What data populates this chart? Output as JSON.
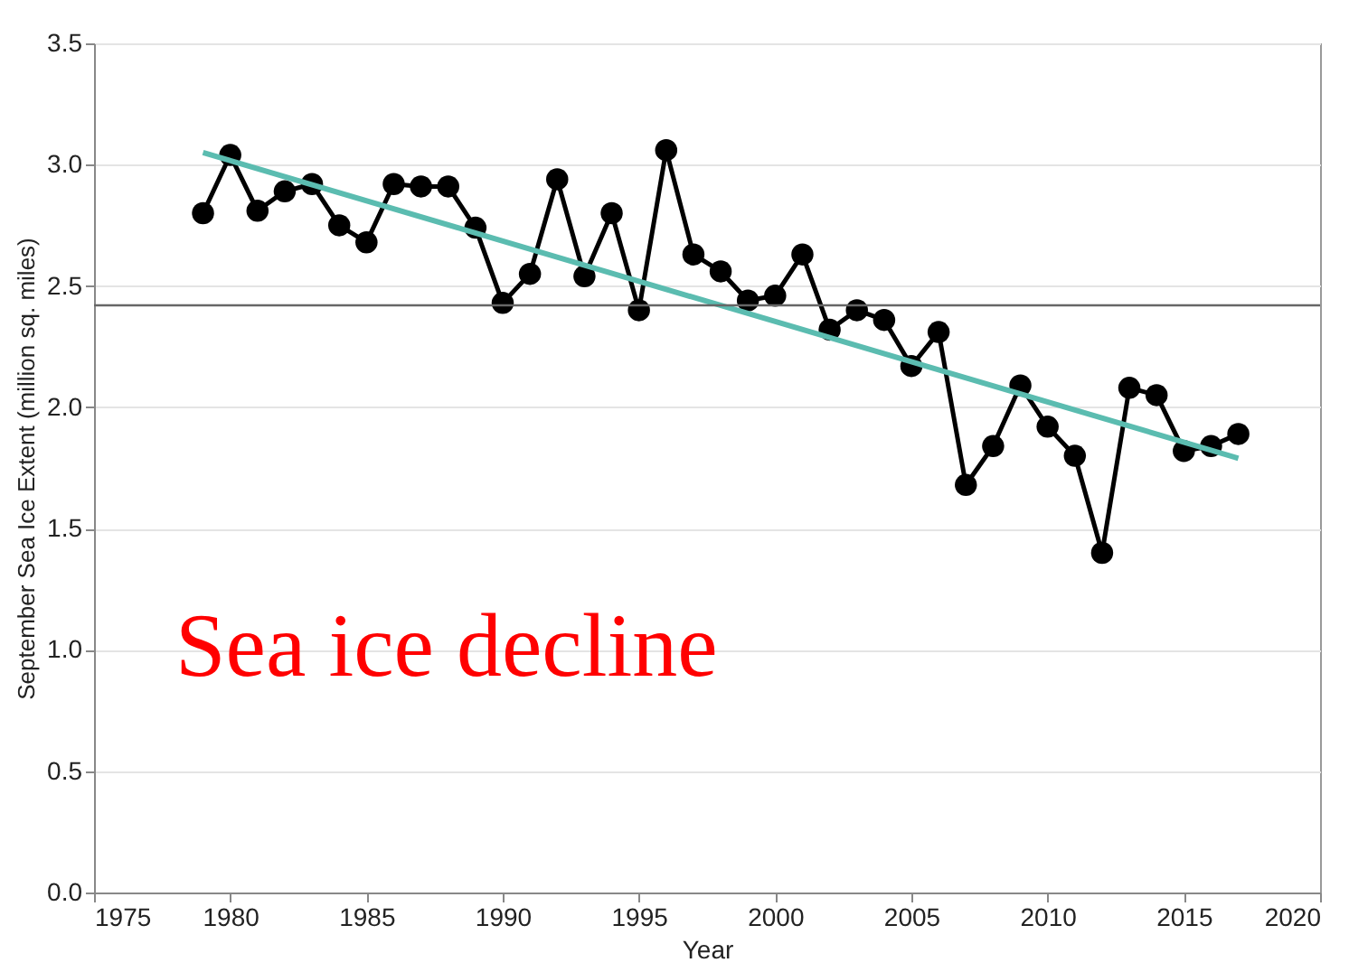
{
  "chart_data": {
    "type": "line",
    "xlabel": "Year",
    "ylabel": "September Sea Ice Extent (million sq. miles)",
    "x": [
      1979,
      1980,
      1981,
      1982,
      1983,
      1984,
      1985,
      1986,
      1987,
      1988,
      1989,
      1990,
      1991,
      1992,
      1993,
      1994,
      1995,
      1996,
      1997,
      1998,
      1999,
      2000,
      2001,
      2002,
      2003,
      2004,
      2005,
      2006,
      2007,
      2008,
      2009,
      2010,
      2011,
      2012,
      2013,
      2014,
      2015,
      2016,
      2017
    ],
    "series": [
      {
        "color": "#000000",
        "marker": "circle",
        "values": [
          2.8,
          3.04,
          2.81,
          2.89,
          2.92,
          2.75,
          2.68,
          2.92,
          2.91,
          2.91,
          2.74,
          2.43,
          2.55,
          2.94,
          2.54,
          2.8,
          2.4,
          3.06,
          2.63,
          2.56,
          2.44,
          2.46,
          2.63,
          2.32,
          2.4,
          2.36,
          2.17,
          2.31,
          1.68,
          1.84,
          2.09,
          1.92,
          1.8,
          1.4,
          2.08,
          2.05,
          1.82,
          1.84,
          1.89
        ]
      },
      {
        "type": "line",
        "color": "#5bbcb0",
        "marker": "none",
        "x": [
          1979,
          2017
        ],
        "values": [
          3.05,
          1.79
        ]
      }
    ],
    "xlim": [
      1975,
      2020
    ],
    "xticks": [
      1975,
      1980,
      1985,
      1990,
      1995,
      2000,
      2005,
      2010,
      2015,
      2020
    ],
    "ylim": [
      0,
      3.5
    ],
    "yticks": [
      {
        "value": 0,
        "label": "0.0"
      },
      {
        "value": 0.5,
        "label": "0.5"
      },
      {
        "value": 1,
        "label": "1.0"
      },
      {
        "value": 1.5,
        "label": "1.5"
      },
      {
        "value": 2,
        "label": "2.0"
      },
      {
        "value": 2.5,
        "label": "2.5"
      },
      {
        "value": 3,
        "label": "3.0"
      },
      {
        "value": 3.5,
        "label": "3.5"
      }
    ],
    "grid": "y",
    "ref_lines": [
      {
        "axis": "y",
        "value": 2.42,
        "color": "#666666"
      }
    ],
    "annotations": [
      "Sea ice decline"
    ]
  }
}
